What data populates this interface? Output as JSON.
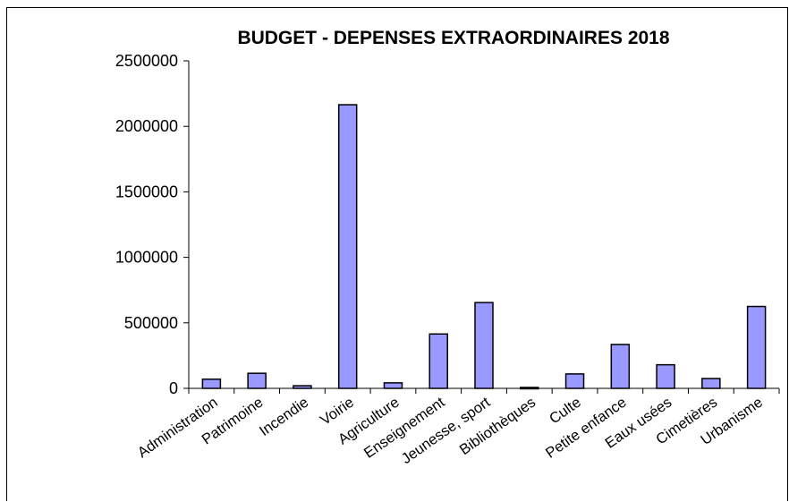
{
  "chart_data": {
    "type": "bar",
    "title": "BUDGET - DEPENSES  EXTRAORDINAIRES 2018",
    "xlabel": "",
    "ylabel": "",
    "ylim": [
      0,
      2500000
    ],
    "yticks": [
      0,
      500000,
      1000000,
      1500000,
      2000000,
      2500000
    ],
    "ytick_labels": [
      "0",
      "500000",
      "1000000",
      "1500000",
      "2000000",
      "2500000"
    ],
    "grid": false,
    "legend": "none",
    "bar_color": "#9999ff",
    "categories": [
      "Administration",
      "Patrimoine",
      "Incendie",
      "Voirie",
      "Agriculture",
      "Enseignement",
      "Jeunesse, sport",
      "Bibliothèques",
      "Culte",
      "Petite enfance",
      "Eaux usées",
      "Cimetières",
      "Urbanisme"
    ],
    "values": [
      70000,
      115000,
      20000,
      2165000,
      42000,
      415000,
      655000,
      7000,
      110000,
      335000,
      180000,
      75000,
      625000
    ]
  }
}
